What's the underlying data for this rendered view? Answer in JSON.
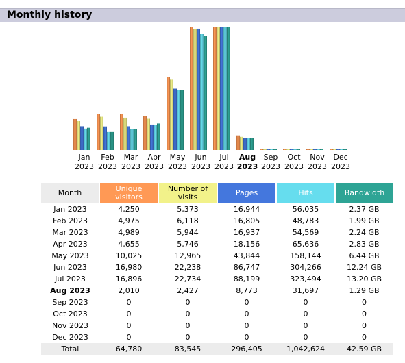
{
  "section": {
    "title": "Monthly history"
  },
  "colors": {
    "uv": "#ff9955",
    "nv": "#f2f28a",
    "pages": "#4477dd",
    "hits": "#66ddee",
    "bw": "#2ea495",
    "header_bg": "#ccccdd"
  },
  "chart_data": {
    "type": "bar",
    "categories": [
      "Jan 2023",
      "Feb 2023",
      "Mar 2023",
      "Apr 2023",
      "May 2023",
      "Jun 2023",
      "Jul 2023",
      "Aug 2023",
      "Sep 2023",
      "Oct 2023",
      "Nov 2023",
      "Dec 2023"
    ],
    "month_labels": [
      "Jan",
      "Feb",
      "Mar",
      "Apr",
      "May",
      "Jun",
      "Jul",
      "Aug",
      "Sep",
      "Oct",
      "Nov",
      "Dec"
    ],
    "year_labels": [
      "2023",
      "2023",
      "2023",
      "2023",
      "2023",
      "2023",
      "2023",
      "2023",
      "2023",
      "2023",
      "2023",
      "2023"
    ],
    "current_index": 7,
    "series": [
      {
        "key": "uv",
        "values": [
          4250,
          4975,
          4989,
          4655,
          10025,
          16980,
          16896,
          2010,
          0,
          0,
          0,
          0
        ]
      },
      {
        "key": "nv",
        "values": [
          5373,
          6118,
          5944,
          5746,
          12965,
          22238,
          22734,
          2427,
          0,
          0,
          0,
          0
        ]
      },
      {
        "key": "pages",
        "values": [
          16944,
          16805,
          16937,
          18156,
          43844,
          86747,
          88199,
          8773,
          0,
          0,
          0,
          0
        ]
      },
      {
        "key": "hits",
        "values": [
          56035,
          48783,
          54569,
          65636,
          158144,
          304266,
          323494,
          31697,
          0,
          0,
          0,
          0
        ]
      },
      {
        "key": "bw",
        "values": [
          2.37,
          1.99,
          2.24,
          2.83,
          6.44,
          12.24,
          13.2,
          1.29,
          0,
          0,
          0,
          0
        ]
      }
    ]
  },
  "table": {
    "headers": {
      "month": "Month",
      "uv": [
        "Unique",
        "visitors"
      ],
      "nv": [
        "Number of",
        "visits"
      ],
      "pages": "Pages",
      "hits": "Hits",
      "bw": "Bandwidth"
    },
    "rows": [
      {
        "month": "Jan 2023",
        "uv": "4,250",
        "nv": "5,373",
        "pages": "16,944",
        "hits": "56,035",
        "bw": "2.37 GB"
      },
      {
        "month": "Feb 2023",
        "uv": "4,975",
        "nv": "6,118",
        "pages": "16,805",
        "hits": "48,783",
        "bw": "1.99 GB"
      },
      {
        "month": "Mar 2023",
        "uv": "4,989",
        "nv": "5,944",
        "pages": "16,937",
        "hits": "54,569",
        "bw": "2.24 GB"
      },
      {
        "month": "Apr 2023",
        "uv": "4,655",
        "nv": "5,746",
        "pages": "18,156",
        "hits": "65,636",
        "bw": "2.83 GB"
      },
      {
        "month": "May 2023",
        "uv": "10,025",
        "nv": "12,965",
        "pages": "43,844",
        "hits": "158,144",
        "bw": "6.44 GB"
      },
      {
        "month": "Jun 2023",
        "uv": "16,980",
        "nv": "22,238",
        "pages": "86,747",
        "hits": "304,266",
        "bw": "12.24 GB"
      },
      {
        "month": "Jul 2023",
        "uv": "16,896",
        "nv": "22,734",
        "pages": "88,199",
        "hits": "323,494",
        "bw": "13.20 GB"
      },
      {
        "month": "Aug 2023",
        "uv": "2,010",
        "nv": "2,427",
        "pages": "8,773",
        "hits": "31,697",
        "bw": "1.29 GB"
      },
      {
        "month": "Sep 2023",
        "uv": "0",
        "nv": "0",
        "pages": "0",
        "hits": "0",
        "bw": "0"
      },
      {
        "month": "Oct 2023",
        "uv": "0",
        "nv": "0",
        "pages": "0",
        "hits": "0",
        "bw": "0"
      },
      {
        "month": "Nov 2023",
        "uv": "0",
        "nv": "0",
        "pages": "0",
        "hits": "0",
        "bw": "0"
      },
      {
        "month": "Dec 2023",
        "uv": "0",
        "nv": "0",
        "pages": "0",
        "hits": "0",
        "bw": "0"
      }
    ],
    "total": {
      "month": "Total",
      "uv": "64,780",
      "nv": "83,545",
      "pages": "296,405",
      "hits": "1,042,624",
      "bw": "42.59 GB"
    }
  }
}
